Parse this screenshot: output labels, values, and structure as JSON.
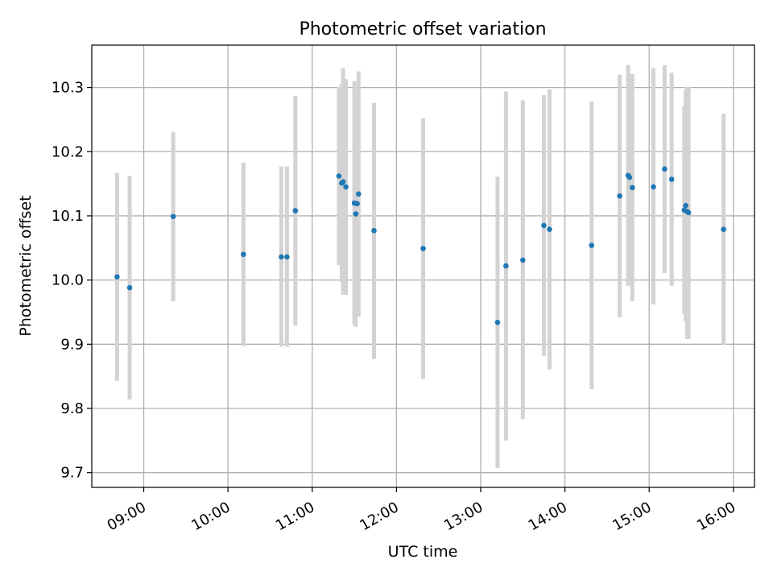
{
  "chart_data": {
    "type": "scatter",
    "title": "Photometric offset variation",
    "xlabel": "UTC time",
    "ylabel": "Photometric offset",
    "xlim": [
      "08:23",
      "16:15"
    ],
    "ylim": [
      9.677,
      10.366
    ],
    "x_ticks": [
      "09:00",
      "10:00",
      "11:00",
      "12:00",
      "13:00",
      "14:00",
      "15:00",
      "16:00"
    ],
    "y_ticks": [
      9.7,
      9.8,
      9.9,
      10.0,
      10.1,
      10.2,
      10.3
    ],
    "y_tick_labels": [
      "9.7",
      "9.8",
      "9.9",
      "10.0",
      "10.1",
      "10.2",
      "10.3"
    ],
    "grid": true,
    "colors": {
      "points": "#1f77b4",
      "error_bars": "#d3d3d3",
      "grid": "#b0b0b0"
    },
    "points": [
      {
        "t": "08:41",
        "y": 10.005,
        "lo": 9.843,
        "hi": 10.167
      },
      {
        "t": "08:50",
        "y": 9.988,
        "lo": 9.814,
        "hi": 10.162
      },
      {
        "t": "09:21",
        "y": 10.099,
        "lo": 9.967,
        "hi": 10.231
      },
      {
        "t": "10:11",
        "y": 10.04,
        "lo": 9.897,
        "hi": 10.183
      },
      {
        "t": "10:38",
        "y": 10.036,
        "lo": 9.896,
        "hi": 10.177
      },
      {
        "t": "10:42",
        "y": 10.036,
        "lo": 9.896,
        "hi": 10.177
      },
      {
        "t": "10:48",
        "y": 10.108,
        "lo": 9.929,
        "hi": 10.287
      },
      {
        "t": "11:19",
        "y": 10.162,
        "lo": 10.023,
        "hi": 10.301
      },
      {
        "t": "11:21",
        "y": 10.151,
        "lo": 9.997,
        "hi": 10.306
      },
      {
        "t": "11:22",
        "y": 10.153,
        "lo": 9.977,
        "hi": 10.33
      },
      {
        "t": "11:24",
        "y": 10.145,
        "lo": 9.977,
        "hi": 10.313
      },
      {
        "t": "11:30",
        "y": 10.12,
        "lo": 9.93,
        "hi": 10.31
      },
      {
        "t": "11:31",
        "y": 10.103,
        "lo": 9.927,
        "hi": 10.279
      },
      {
        "t": "11:32",
        "y": 10.119,
        "lo": 9.945,
        "hi": 10.293
      },
      {
        "t": "11:33",
        "y": 10.134,
        "lo": 9.943,
        "hi": 10.325
      },
      {
        "t": "11:44",
        "y": 10.077,
        "lo": 9.877,
        "hi": 10.276
      },
      {
        "t": "12:19",
        "y": 10.049,
        "lo": 9.846,
        "hi": 10.252
      },
      {
        "t": "13:12",
        "y": 9.934,
        "lo": 9.707,
        "hi": 10.161
      },
      {
        "t": "13:18",
        "y": 10.022,
        "lo": 9.75,
        "hi": 10.294
      },
      {
        "t": "13:30",
        "y": 10.031,
        "lo": 9.783,
        "hi": 10.28
      },
      {
        "t": "13:45",
        "y": 10.085,
        "lo": 9.882,
        "hi": 10.288
      },
      {
        "t": "13:49",
        "y": 10.079,
        "lo": 9.861,
        "hi": 10.297
      },
      {
        "t": "14:19",
        "y": 10.054,
        "lo": 9.83,
        "hi": 10.278
      },
      {
        "t": "14:39",
        "y": 10.131,
        "lo": 9.942,
        "hi": 10.32
      },
      {
        "t": "14:45",
        "y": 10.163,
        "lo": 9.991,
        "hi": 10.335
      },
      {
        "t": "14:46",
        "y": 10.16,
        "lo": 9.999,
        "hi": 10.321
      },
      {
        "t": "14:48",
        "y": 10.144,
        "lo": 9.967,
        "hi": 10.321
      },
      {
        "t": "15:03",
        "y": 10.145,
        "lo": 9.962,
        "hi": 10.33
      },
      {
        "t": "15:11",
        "y": 10.173,
        "lo": 10.011,
        "hi": 10.335
      },
      {
        "t": "15:16",
        "y": 10.157,
        "lo": 9.991,
        "hi": 10.323
      },
      {
        "t": "15:25",
        "y": 10.109,
        "lo": 9.947,
        "hi": 10.271
      },
      {
        "t": "15:26",
        "y": 10.116,
        "lo": 9.936,
        "hi": 10.296
      },
      {
        "t": "15:27",
        "y": 10.107,
        "lo": 9.908,
        "hi": 10.301
      },
      {
        "t": "15:28",
        "y": 10.105,
        "lo": 9.908,
        "hi": 10.301
      },
      {
        "t": "15:53",
        "y": 10.079,
        "lo": 9.899,
        "hi": 10.259
      }
    ]
  }
}
